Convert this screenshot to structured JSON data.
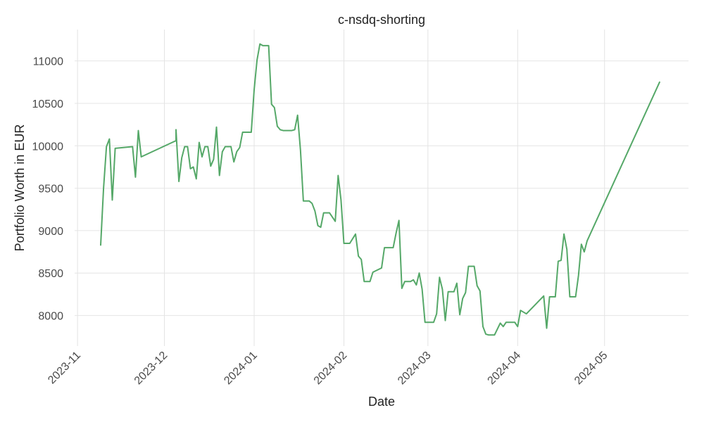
{
  "chart_data": {
    "type": "line",
    "title": "c-nsdq-shorting",
    "xlabel": "Date",
    "ylabel": "Portfolio Worth in EUR",
    "x_ticks": [
      "2023-11",
      "2023-12",
      "2024-01",
      "2024-02",
      "2024-03",
      "2024-04",
      "2024-05"
    ],
    "y_ticks": [
      "8000",
      "8500",
      "9000",
      "9500",
      "10000",
      "10500",
      "11000"
    ],
    "xlim": [
      "2023-10-31",
      "2024-05-30"
    ],
    "ylim": [
      7640,
      11370
    ],
    "grid": true,
    "series": [
      {
        "color": "#55a868",
        "points": [
          [
            "2023-11-09",
            8830
          ],
          [
            "2023-11-10",
            9500
          ],
          [
            "2023-11-11",
            9990
          ],
          [
            "2023-11-12",
            10080
          ],
          [
            "2023-11-13",
            9360
          ],
          [
            "2023-11-14",
            9970
          ],
          [
            "2023-11-20",
            9990
          ],
          [
            "2023-11-21",
            9630
          ],
          [
            "2023-11-22",
            10180
          ],
          [
            "2023-11-23",
            9870
          ],
          [
            "2023-12-05",
            10060
          ],
          [
            "2023-12-05",
            10190
          ],
          [
            "2023-12-06",
            9580
          ],
          [
            "2023-12-07",
            9860
          ],
          [
            "2023-12-08",
            9990
          ],
          [
            "2023-12-09",
            9990
          ],
          [
            "2023-12-10",
            9730
          ],
          [
            "2023-12-11",
            9750
          ],
          [
            "2023-12-12",
            9610
          ],
          [
            "2023-12-13",
            10040
          ],
          [
            "2023-12-14",
            9870
          ],
          [
            "2023-12-15",
            9990
          ],
          [
            "2023-12-16",
            9990
          ],
          [
            "2023-12-17",
            9760
          ],
          [
            "2023-12-18",
            9840
          ],
          [
            "2023-12-19",
            10220
          ],
          [
            "2023-12-20",
            9650
          ],
          [
            "2023-12-21",
            9930
          ],
          [
            "2023-12-22",
            9990
          ],
          [
            "2023-12-24",
            9990
          ],
          [
            "2023-12-25",
            9810
          ],
          [
            "2023-12-26",
            9930
          ],
          [
            "2023-12-27",
            9980
          ],
          [
            "2023-12-28",
            10160
          ],
          [
            "2023-12-31",
            10160
          ],
          [
            "2024-01-01",
            10660
          ],
          [
            "2024-01-02",
            11010
          ],
          [
            "2024-01-03",
            11200
          ],
          [
            "2024-01-04",
            11180
          ],
          [
            "2024-01-06",
            11180
          ],
          [
            "2024-01-07",
            10490
          ],
          [
            "2024-01-08",
            10450
          ],
          [
            "2024-01-09",
            10230
          ],
          [
            "2024-01-10",
            10190
          ],
          [
            "2024-01-11",
            10180
          ],
          [
            "2024-01-14",
            10180
          ],
          [
            "2024-01-15",
            10190
          ],
          [
            "2024-01-16",
            10360
          ],
          [
            "2024-01-17",
            9950
          ],
          [
            "2024-01-18",
            9350
          ],
          [
            "2024-01-20",
            9350
          ],
          [
            "2024-01-21",
            9320
          ],
          [
            "2024-01-22",
            9230
          ],
          [
            "2024-01-23",
            9060
          ],
          [
            "2024-01-24",
            9040
          ],
          [
            "2024-01-25",
            9210
          ],
          [
            "2024-01-27",
            9210
          ],
          [
            "2024-01-29",
            9110
          ],
          [
            "2024-01-30",
            9650
          ],
          [
            "2024-01-31",
            9360
          ],
          [
            "2024-02-01",
            8850
          ],
          [
            "2024-02-03",
            8850
          ],
          [
            "2024-02-05",
            8960
          ],
          [
            "2024-02-06",
            8700
          ],
          [
            "2024-02-07",
            8660
          ],
          [
            "2024-02-08",
            8400
          ],
          [
            "2024-02-10",
            8400
          ],
          [
            "2024-02-11",
            8510
          ],
          [
            "2024-02-14",
            8560
          ],
          [
            "2024-02-15",
            8800
          ],
          [
            "2024-02-18",
            8800
          ],
          [
            "2024-02-19",
            8970
          ],
          [
            "2024-02-20",
            9120
          ],
          [
            "2024-02-21",
            8320
          ],
          [
            "2024-02-22",
            8400
          ],
          [
            "2024-02-24",
            8400
          ],
          [
            "2024-02-25",
            8420
          ],
          [
            "2024-02-26",
            8360
          ],
          [
            "2024-02-27",
            8500
          ],
          [
            "2024-02-28",
            8310
          ],
          [
            "2024-02-29",
            7920
          ],
          [
            "2024-03-03",
            7920
          ],
          [
            "2024-03-04",
            8020
          ],
          [
            "2024-03-05",
            8450
          ],
          [
            "2024-03-06",
            8310
          ],
          [
            "2024-03-07",
            7940
          ],
          [
            "2024-03-08",
            8280
          ],
          [
            "2024-03-10",
            8280
          ],
          [
            "2024-03-11",
            8380
          ],
          [
            "2024-03-12",
            8010
          ],
          [
            "2024-03-13",
            8200
          ],
          [
            "2024-03-14",
            8270
          ],
          [
            "2024-03-15",
            8580
          ],
          [
            "2024-03-17",
            8580
          ],
          [
            "2024-03-18",
            8350
          ],
          [
            "2024-03-19",
            8290
          ],
          [
            "2024-03-20",
            7870
          ],
          [
            "2024-03-21",
            7780
          ],
          [
            "2024-03-22",
            7770
          ],
          [
            "2024-03-24",
            7770
          ],
          [
            "2024-03-26",
            7910
          ],
          [
            "2024-03-27",
            7870
          ],
          [
            "2024-03-28",
            7920
          ],
          [
            "2024-03-31",
            7920
          ],
          [
            "2024-04-01",
            7870
          ],
          [
            "2024-04-02",
            8060
          ],
          [
            "2024-04-04",
            8020
          ],
          [
            "2024-04-10",
            8230
          ],
          [
            "2024-04-11",
            7850
          ],
          [
            "2024-04-12",
            8220
          ],
          [
            "2024-04-14",
            8220
          ],
          [
            "2024-04-15",
            8640
          ],
          [
            "2024-04-16",
            8650
          ],
          [
            "2024-04-17",
            8960
          ],
          [
            "2024-04-18",
            8780
          ],
          [
            "2024-04-19",
            8220
          ],
          [
            "2024-04-21",
            8220
          ],
          [
            "2024-04-22",
            8470
          ],
          [
            "2024-04-23",
            8840
          ],
          [
            "2024-04-24",
            8750
          ],
          [
            "2024-04-25",
            8880
          ],
          [
            "2024-05-20",
            10750
          ]
        ]
      }
    ]
  }
}
